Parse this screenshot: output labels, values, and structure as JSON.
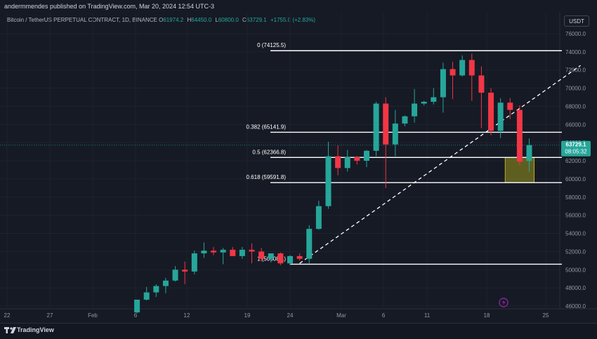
{
  "publisher_line": "andermmendes published on TradingView.com, Mar 20, 2024 12:54 UTC-3",
  "symbol": "Bitcoin / TetherUS PERPETUAL CONTRACT, 1D, BINANCE",
  "ohlc": {
    "o_label": "O",
    "o": "61974.2",
    "h_label": "H",
    "h": "64450.0",
    "l_label": "L",
    "l": "60800.0",
    "c_label": "C",
    "c": "63729.1",
    "change": "+1755.0 (+2.83%)"
  },
  "currency": "USDT",
  "price_tag": {
    "price": "63729.1",
    "countdown": "08:05:32"
  },
  "brand": "TradingView",
  "colors": {
    "up": "#26a69a",
    "down": "#f23645",
    "bg": "#161a25",
    "zone": "#b5b21c"
  },
  "chart_data": {
    "type": "candlestick",
    "y_ticks": [
      46000,
      48000,
      50000,
      52000,
      54000,
      56000,
      58000,
      60000,
      62000,
      64000,
      66000,
      68000,
      70000,
      72000,
      74000,
      76000
    ],
    "y_tick_labels": [
      "46000.0",
      "48000.0",
      "50000.0",
      "52000.0",
      "54000.0",
      "56000.0",
      "58000.0",
      "60000.0",
      "62000.0",
      "64000.0",
      "66000.0",
      "68000.0",
      "70000.0",
      "72000.0",
      "74000.0",
      "76000.0"
    ],
    "ylim": [
      45200,
      77800
    ],
    "x_labels": [
      "22",
      "27",
      "Feb",
      "6",
      "12",
      "19",
      "24",
      "Mar",
      "6",
      "11",
      "18",
      "25"
    ],
    "candles": [
      {
        "date": "2024-02-08",
        "o": 45300,
        "h": 46700,
        "l": 45200,
        "c": 46700
      },
      {
        "date": "2024-02-09",
        "o": 46700,
        "h": 48100,
        "l": 46600,
        "c": 47500
      },
      {
        "date": "2024-02-10",
        "o": 47500,
        "h": 48400,
        "l": 47000,
        "c": 48200
      },
      {
        "date": "2024-02-11",
        "o": 48200,
        "h": 49100,
        "l": 47400,
        "c": 48800
      },
      {
        "date": "2024-02-12",
        "o": 48800,
        "h": 50400,
        "l": 48700,
        "c": 50000
      },
      {
        "date": "2024-02-13",
        "o": 50000,
        "h": 50900,
        "l": 48400,
        "c": 49800
      },
      {
        "date": "2024-02-14",
        "o": 49800,
        "h": 52100,
        "l": 49500,
        "c": 51800
      },
      {
        "date": "2024-02-15",
        "o": 51800,
        "h": 53000,
        "l": 51300,
        "c": 52100
      },
      {
        "date": "2024-02-16",
        "o": 52100,
        "h": 52500,
        "l": 51600,
        "c": 51900
      },
      {
        "date": "2024-02-17",
        "o": 51900,
        "h": 52400,
        "l": 50600,
        "c": 52200
      },
      {
        "date": "2024-02-18",
        "o": 52200,
        "h": 52500,
        "l": 51700,
        "c": 51500
      },
      {
        "date": "2024-02-19",
        "o": 51500,
        "h": 52500,
        "l": 51200,
        "c": 52200
      },
      {
        "date": "2024-02-20",
        "o": 52200,
        "h": 52900,
        "l": 50700,
        "c": 52000
      },
      {
        "date": "2024-02-21",
        "o": 52000,
        "h": 52400,
        "l": 50900,
        "c": 51200
      },
      {
        "date": "2024-02-22",
        "o": 51200,
        "h": 51700,
        "l": 50800,
        "c": 51800
      },
      {
        "date": "2024-02-23",
        "o": 51800,
        "h": 51900,
        "l": 50500,
        "c": 50700
      },
      {
        "date": "2024-02-24",
        "o": 50700,
        "h": 51600,
        "l": 50500,
        "c": 51500
      },
      {
        "date": "2024-02-25",
        "o": 51500,
        "h": 51800,
        "l": 51000,
        "c": 51200
      },
      {
        "date": "2024-02-26",
        "o": 51200,
        "h": 54900,
        "l": 50700,
        "c": 54500
      },
      {
        "date": "2024-02-27",
        "o": 54500,
        "h": 57600,
        "l": 54400,
        "c": 57000
      },
      {
        "date": "2024-02-28",
        "o": 57000,
        "h": 64100,
        "l": 56700,
        "c": 62500
      },
      {
        "date": "2024-02-29",
        "o": 62500,
        "h": 63700,
        "l": 60400,
        "c": 61200
      },
      {
        "date": "2024-03-01",
        "o": 61200,
        "h": 63200,
        "l": 60800,
        "c": 62400
      },
      {
        "date": "2024-03-02",
        "o": 62400,
        "h": 62500,
        "l": 61600,
        "c": 62000
      },
      {
        "date": "2024-03-03",
        "o": 62000,
        "h": 63200,
        "l": 61300,
        "c": 63100
      },
      {
        "date": "2024-03-04",
        "o": 63100,
        "h": 68500,
        "l": 62500,
        "c": 68300
      },
      {
        "date": "2024-03-05",
        "o": 68300,
        "h": 69000,
        "l": 59000,
        "c": 63800
      },
      {
        "date": "2024-03-06",
        "o": 63800,
        "h": 67600,
        "l": 62500,
        "c": 66100
      },
      {
        "date": "2024-03-07",
        "o": 66100,
        "h": 67000,
        "l": 65800,
        "c": 66900
      },
      {
        "date": "2024-03-08",
        "o": 66900,
        "h": 69900,
        "l": 66200,
        "c": 68300
      },
      {
        "date": "2024-03-09",
        "o": 68300,
        "h": 68600,
        "l": 68100,
        "c": 68500
      },
      {
        "date": "2024-03-10",
        "o": 68500,
        "h": 70000,
        "l": 68200,
        "c": 69000
      },
      {
        "date": "2024-03-11",
        "o": 69000,
        "h": 72800,
        "l": 67300,
        "c": 72100
      },
      {
        "date": "2024-03-12",
        "o": 72100,
        "h": 72900,
        "l": 68800,
        "c": 71400
      },
      {
        "date": "2024-03-13",
        "o": 71400,
        "h": 73600,
        "l": 71300,
        "c": 73100
      },
      {
        "date": "2024-03-14",
        "o": 73100,
        "h": 73800,
        "l": 68600,
        "c": 71400
      },
      {
        "date": "2024-03-15",
        "o": 71400,
        "h": 72400,
        "l": 65600,
        "c": 69500
      },
      {
        "date": "2024-03-16",
        "o": 69500,
        "h": 70000,
        "l": 64800,
        "c": 65300
      },
      {
        "date": "2024-03-17",
        "o": 65300,
        "h": 68900,
        "l": 64500,
        "c": 68400
      },
      {
        "date": "2024-03-18",
        "o": 68400,
        "h": 68900,
        "l": 66600,
        "c": 67600
      },
      {
        "date": "2024-03-19",
        "o": 67600,
        "h": 68100,
        "l": 61500,
        "c": 61900
      },
      {
        "date": "2024-03-20",
        "o": 61974.2,
        "h": 64450.0,
        "l": 60800.0,
        "c": 63729.1
      }
    ],
    "fib_levels": [
      {
        "label": "0 (74125.5)",
        "value": 74125.5
      },
      {
        "label": "0.382 (65141.9)",
        "value": 65141.9
      },
      {
        "label": "0.5 (62366.8)",
        "value": 62366.8
      },
      {
        "label": "0.618 (59591.8)",
        "value": 59591.8
      },
      {
        "label": "1 (50608.1)",
        "value": 50608.1
      }
    ],
    "trendline": {
      "from": {
        "date": "2024-02-25",
        "price": 50700
      },
      "to": {
        "date": "2024-03-25",
        "price": 72500
      }
    },
    "zone": {
      "from": "2024-03-18",
      "to": "2024-03-20",
      "top": 62366.8,
      "bottom": 59591.8
    }
  }
}
